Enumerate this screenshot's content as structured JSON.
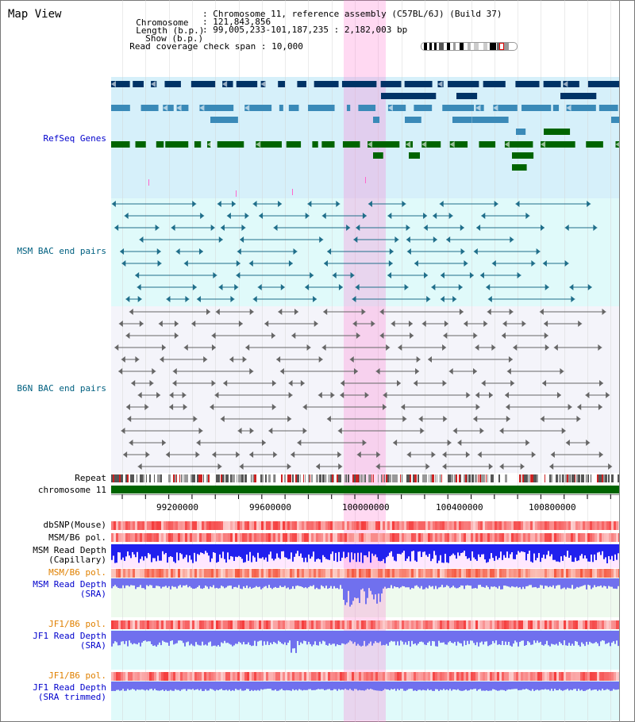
{
  "page": {
    "title": "Map View"
  },
  "header": {
    "rows": [
      {
        "label": "Chromosome",
        "value": "Chromosome 11, reference assembly (C57BL/6J) (Build 37)"
      },
      {
        "label": "Length (b.p.)",
        "value": "121,843,856"
      },
      {
        "label": "Show (b.p.)",
        "value": "99,005,233-101,187,235 : 2,182,003 bp"
      }
    ],
    "coverage_label": "Read coverage check span",
    "coverage_value": "10,000"
  },
  "tracks": {
    "refseq": "RefSeq Genes",
    "msm_bac": "MSM BAC end pairs",
    "b6n_bac": "B6N BAC end pairs",
    "repeat": "Repeat",
    "chromosome": "chromosome 11",
    "dbsnp": "dbSNP(Mouse)",
    "msm_b6_pol_1": "MSM/B6 pol.",
    "msm_depth_cap_1": "MSM Read Depth",
    "msm_depth_cap_2": "(Capillary)",
    "msm_b6_pol_2": "MSM/B6 pol.",
    "msm_depth_sra_1": "MSM Read Depth",
    "msm_depth_sra_2": "(SRA)",
    "jf1_b6_pol_1": "JF1/B6 pol.",
    "jf1_depth_sra_1": "JF1 Read Depth",
    "jf1_depth_sra_2": "(SRA)",
    "jf1_b6_pol_2": "JF1/B6 pol.",
    "jf1_depth_trim_1": "JF1 Read Depth",
    "jf1_depth_trim_2": "(SRA trimmed)"
  },
  "axis": {
    "ticks": [
      "99200000",
      "99600000",
      "100000000",
      "100400000",
      "100800000"
    ]
  },
  "colors": {
    "refseq_bg": "#d6f0fa",
    "msm_bg": "#e0fafa",
    "b6n_bg": "#f4f4fa",
    "highlight": "#ff78d2",
    "label_blue": "#0000cc",
    "label_teal": "#006080",
    "label_orange": "#e08000"
  }
}
